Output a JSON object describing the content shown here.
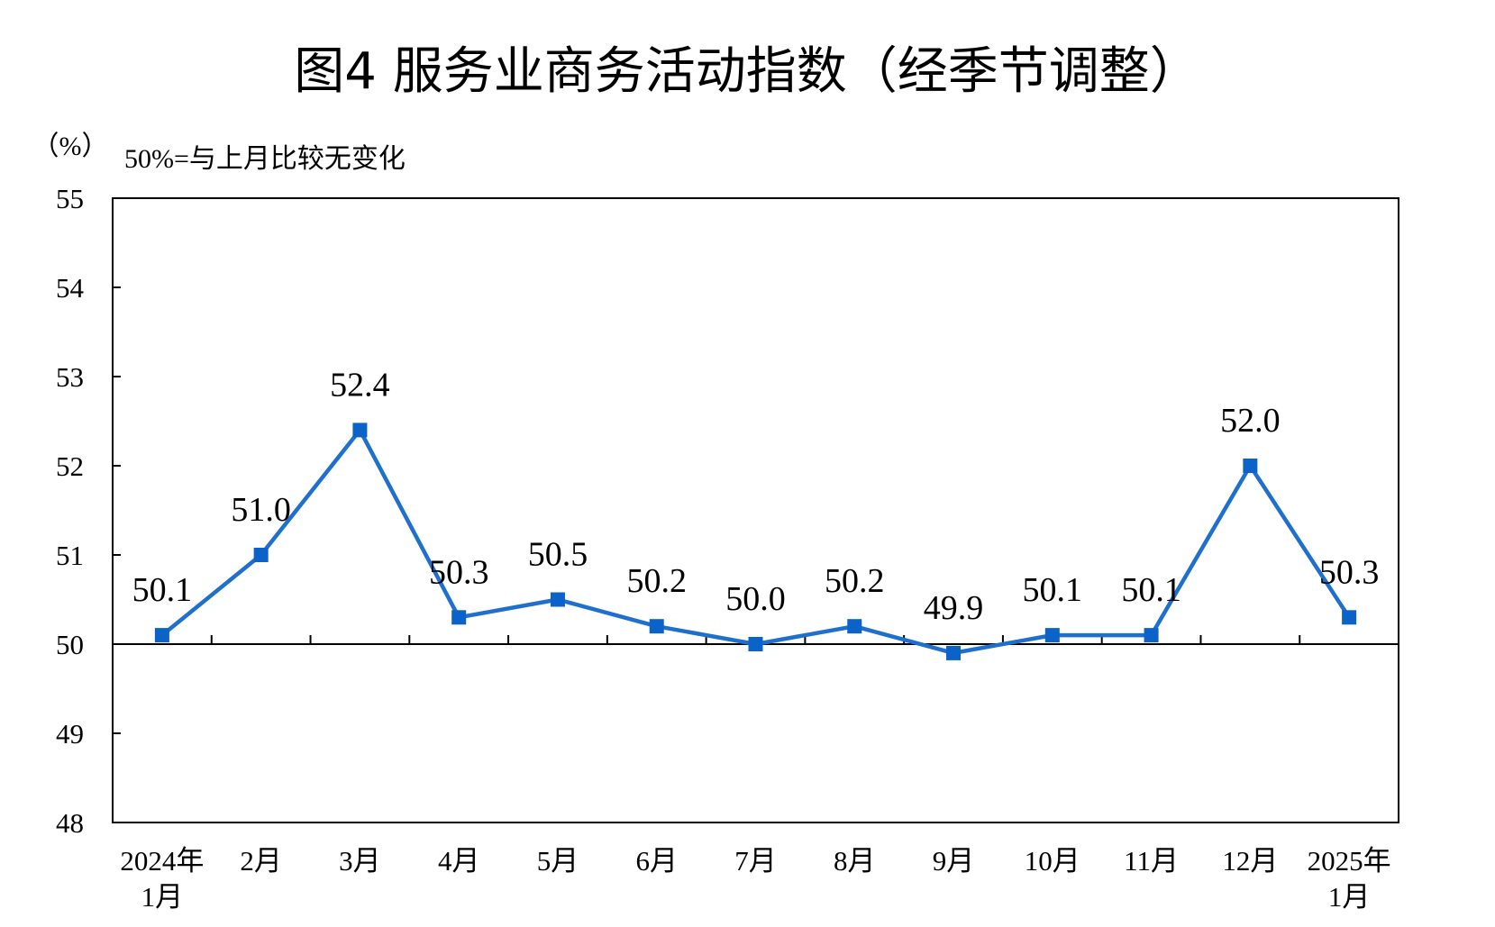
{
  "chart_data": {
    "type": "line",
    "title": "图4  服务业商务活动指数（经季节调整）",
    "unit_label": "（%）",
    "note": "50%=与上月比较无变化",
    "categories": [
      [
        "2024年",
        "1月"
      ],
      [
        "2月"
      ],
      [
        "3月"
      ],
      [
        "4月"
      ],
      [
        "5月"
      ],
      [
        "6月"
      ],
      [
        "7月"
      ],
      [
        "8月"
      ],
      [
        "9月"
      ],
      [
        "10月"
      ],
      [
        "11月"
      ],
      [
        "12月"
      ],
      [
        "2025年",
        "1月"
      ]
    ],
    "values": [
      50.1,
      51.0,
      52.4,
      50.3,
      50.5,
      50.2,
      50.0,
      50.2,
      49.9,
      50.1,
      50.1,
      52.0,
      50.3
    ],
    "value_labels": [
      "50.1",
      "51.0",
      "52.4",
      "50.3",
      "50.5",
      "50.2",
      "50.0",
      "50.2",
      "49.9",
      "50.1",
      "50.1",
      "52.0",
      "50.3"
    ],
    "yticks": [
      "48",
      "49",
      "50",
      "51",
      "52",
      "53",
      "54",
      "55"
    ],
    "ylim": [
      48,
      55
    ],
    "reference_line": 50,
    "grid": false,
    "legend": "none",
    "colors": {
      "line": "#1f6fce",
      "marker": "#0b63c9",
      "axis": "#000000"
    }
  }
}
